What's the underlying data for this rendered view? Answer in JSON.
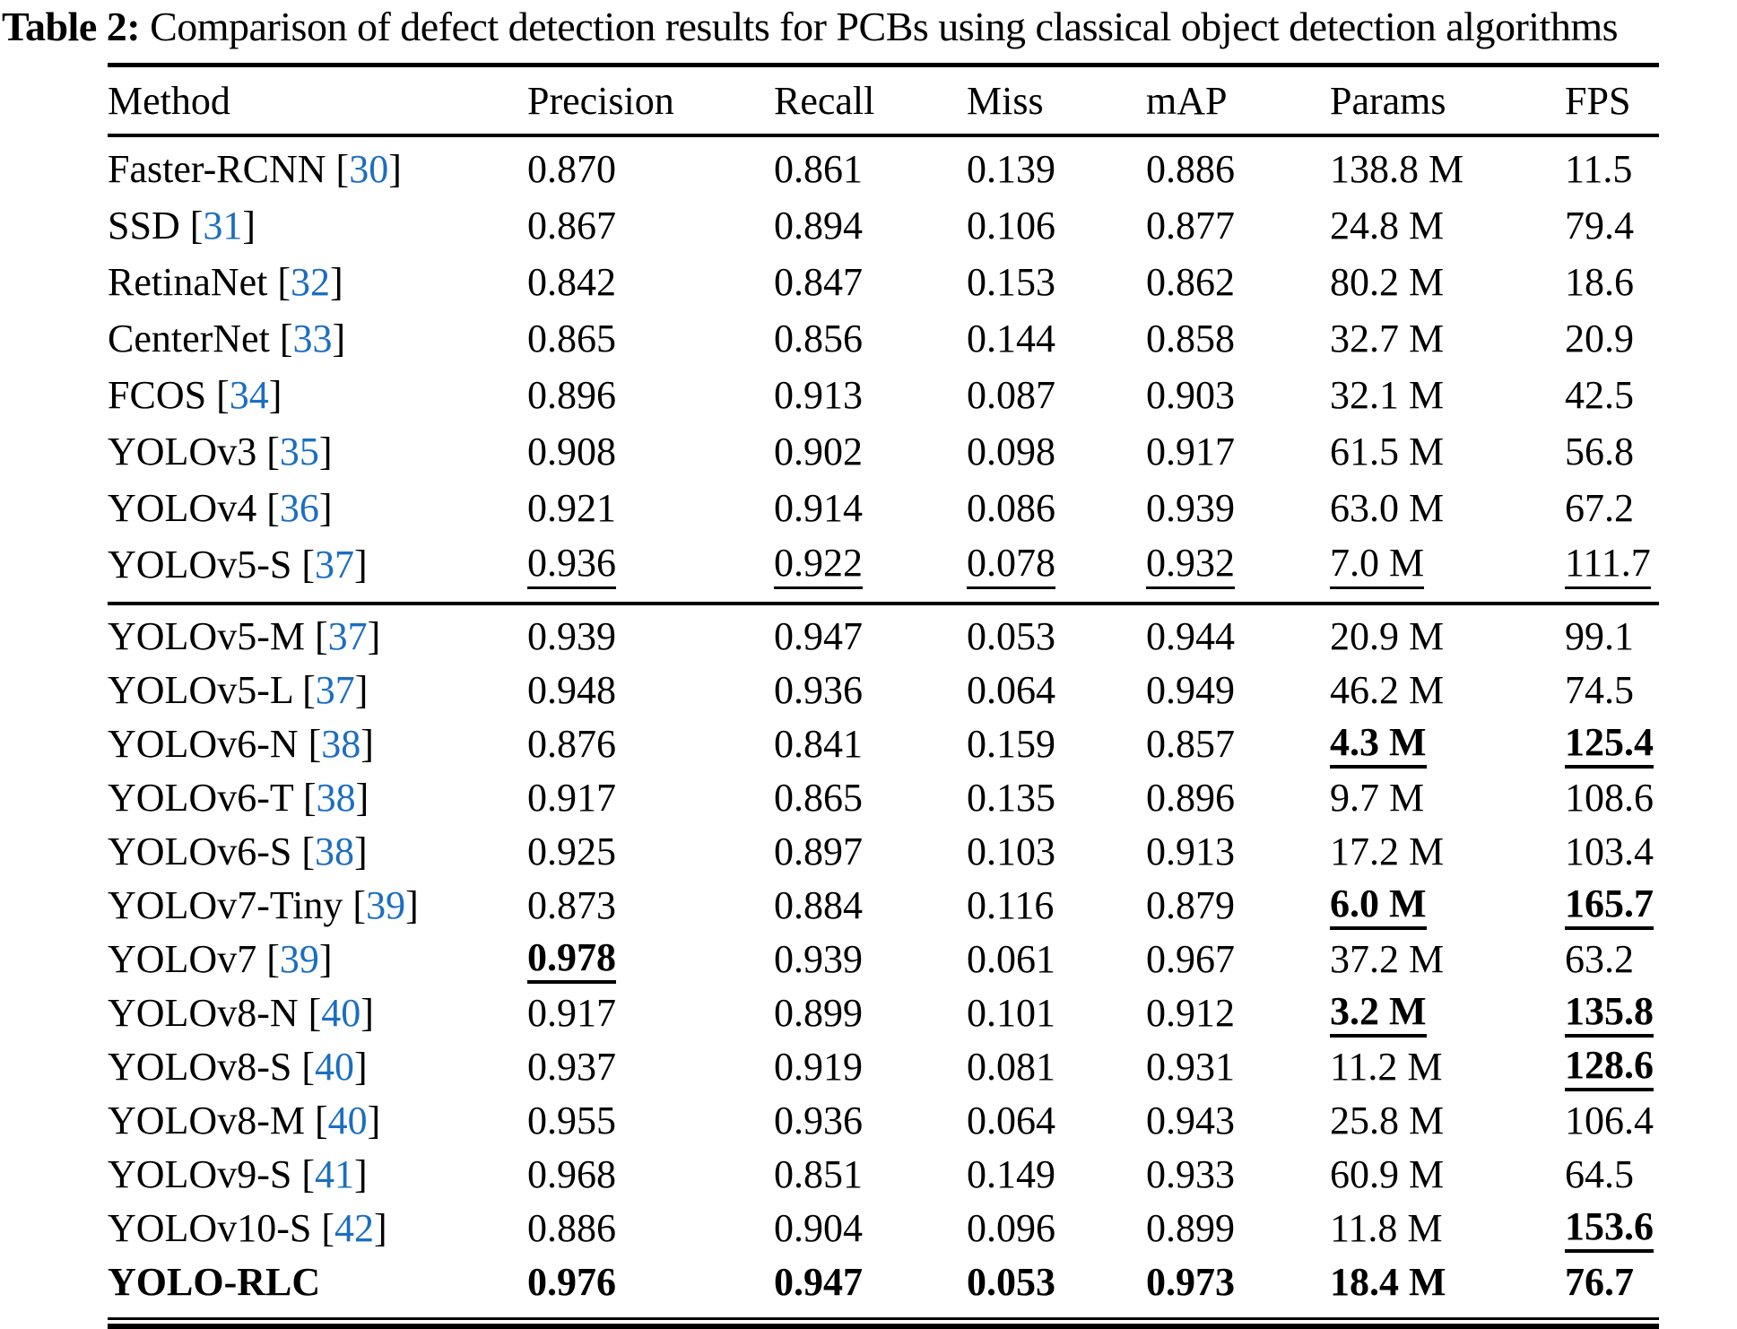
{
  "caption": {
    "label": "Table 2:",
    "text": " Comparison of defect detection results for PCBs using classical object detection algorithms"
  },
  "table": {
    "columns": [
      "Method",
      "Precision",
      "Recall",
      "Miss",
      "mAP",
      "Params",
      "FPS"
    ],
    "citation_color": "#1b6ec2",
    "groups": [
      {
        "rows": [
          {
            "method": "Faster-RCNN",
            "cite": "30",
            "cells": [
              "0.870",
              "0.861",
              "0.139",
              "0.886",
              "138.8 M",
              "11.5"
            ],
            "styles": [
              "",
              "",
              "",
              "",
              "",
              ""
            ]
          },
          {
            "method": "SSD",
            "cite": "31",
            "cells": [
              "0.867",
              "0.894",
              "0.106",
              "0.877",
              "24.8 M",
              "79.4"
            ],
            "styles": [
              "",
              "",
              "",
              "",
              "",
              ""
            ]
          },
          {
            "method": "RetinaNet",
            "cite": "32",
            "cells": [
              "0.842",
              "0.847",
              "0.153",
              "0.862",
              "80.2 M",
              "18.6"
            ],
            "styles": [
              "",
              "",
              "",
              "",
              "",
              ""
            ]
          },
          {
            "method": "CenterNet",
            "cite": "33",
            "cells": [
              "0.865",
              "0.856",
              "0.144",
              "0.858",
              "32.7 M",
              "20.9"
            ],
            "styles": [
              "",
              "",
              "",
              "",
              "",
              ""
            ]
          },
          {
            "method": "FCOS",
            "cite": "34",
            "cells": [
              "0.896",
              "0.913",
              "0.087",
              "0.903",
              "32.1 M",
              "42.5"
            ],
            "styles": [
              "",
              "",
              "",
              "",
              "",
              ""
            ]
          },
          {
            "method": "YOLOv3",
            "cite": "35",
            "cells": [
              "0.908",
              "0.902",
              "0.098",
              "0.917",
              "61.5 M",
              "56.8"
            ],
            "styles": [
              "",
              "",
              "",
              "",
              "",
              ""
            ]
          },
          {
            "method": "YOLOv4",
            "cite": "36",
            "cells": [
              "0.921",
              "0.914",
              "0.086",
              "0.939",
              "63.0 M",
              "67.2"
            ],
            "styles": [
              "",
              "",
              "",
              "",
              "",
              ""
            ]
          },
          {
            "method": "YOLOv5-S",
            "cite": "37",
            "cells": [
              "0.936",
              "0.922",
              "0.078",
              "0.932",
              "7.0 M",
              "111.7"
            ],
            "styles": [
              "u",
              "u",
              "u",
              "u",
              "u",
              "u"
            ]
          }
        ]
      },
      {
        "rows": [
          {
            "method": "YOLOv5-M",
            "cite": "37",
            "cells": [
              "0.939",
              "0.947",
              "0.053",
              "0.944",
              "20.9 M",
              "99.1"
            ],
            "styles": [
              "",
              "",
              "",
              "",
              "",
              ""
            ]
          },
          {
            "method": "YOLOv5-L",
            "cite": "37",
            "cells": [
              "0.948",
              "0.936",
              "0.064",
              "0.949",
              "46.2 M",
              "74.5"
            ],
            "styles": [
              "",
              "",
              "",
              "",
              "",
              ""
            ]
          },
          {
            "method": "YOLOv6-N",
            "cite": "38",
            "cells": [
              "0.876",
              "0.841",
              "0.159",
              "0.857",
              "4.3 M",
              "125.4"
            ],
            "styles": [
              "",
              "",
              "",
              "",
              "bu",
              "bu"
            ]
          },
          {
            "method": "YOLOv6-T",
            "cite": "38",
            "cells": [
              "0.917",
              "0.865",
              "0.135",
              "0.896",
              "9.7 M",
              "108.6"
            ],
            "styles": [
              "",
              "",
              "",
              "",
              "",
              ""
            ]
          },
          {
            "method": "YOLOv6-S",
            "cite": "38",
            "cells": [
              "0.925",
              "0.897",
              "0.103",
              "0.913",
              "17.2 M",
              "103.4"
            ],
            "styles": [
              "",
              "",
              "",
              "",
              "",
              ""
            ]
          },
          {
            "method": "YOLOv7-Tiny",
            "cite": "39",
            "cells": [
              "0.873",
              "0.884",
              "0.116",
              "0.879",
              "6.0 M",
              "165.7"
            ],
            "styles": [
              "",
              "",
              "",
              "",
              "bu",
              "bu"
            ]
          },
          {
            "method": "YOLOv7",
            "cite": "39",
            "cells": [
              "0.978",
              "0.939",
              "0.061",
              "0.967",
              "37.2 M",
              "63.2"
            ],
            "styles": [
              "bu",
              "",
              "",
              "",
              "",
              ""
            ]
          },
          {
            "method": "YOLOv8-N",
            "cite": "40",
            "cells": [
              "0.917",
              "0.899",
              "0.101",
              "0.912",
              "3.2 M",
              "135.8"
            ],
            "styles": [
              "",
              "",
              "",
              "",
              "bu",
              "bu"
            ]
          },
          {
            "method": "YOLOv8-S",
            "cite": "40",
            "cells": [
              "0.937",
              "0.919",
              "0.081",
              "0.931",
              "11.2 M",
              "128.6"
            ],
            "styles": [
              "",
              "",
              "",
              "",
              "",
              "bu"
            ]
          },
          {
            "method": "YOLOv8-M",
            "cite": "40",
            "cells": [
              "0.955",
              "0.936",
              "0.064",
              "0.943",
              "25.8 M",
              "106.4"
            ],
            "styles": [
              "",
              "",
              "",
              "",
              "",
              ""
            ]
          },
          {
            "method": "YOLOv9-S",
            "cite": "41",
            "cells": [
              "0.968",
              "0.851",
              "0.149",
              "0.933",
              "60.9 M",
              "64.5"
            ],
            "styles": [
              "",
              "",
              "",
              "",
              "",
              ""
            ]
          },
          {
            "method": "YOLOv10-S",
            "cite": "42",
            "cells": [
              "0.886",
              "0.904",
              "0.096",
              "0.899",
              "11.8 M",
              "153.6"
            ],
            "styles": [
              "",
              "",
              "",
              "",
              "",
              "bu"
            ]
          },
          {
            "method": "YOLO-RLC",
            "cite": null,
            "bold": true,
            "cells": [
              "0.976",
              "0.947",
              "0.053",
              "0.973",
              "18.4 M",
              "76.7"
            ],
            "styles": [
              "b",
              "b",
              "b",
              "b",
              "b",
              "b"
            ]
          }
        ]
      }
    ]
  }
}
